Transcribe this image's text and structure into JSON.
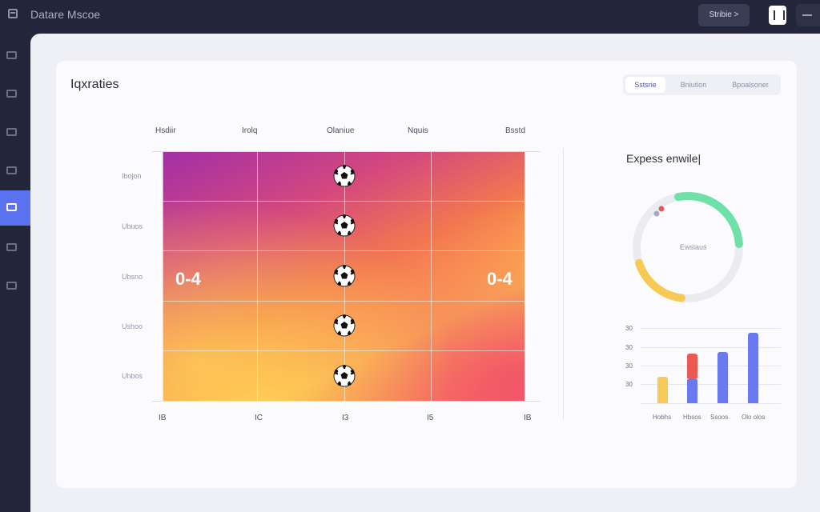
{
  "app": {
    "title": "Datare Mscoe",
    "top_button_label": "Stribie >",
    "icons": [
      "app-icon",
      "copy-icon",
      "minus-icon"
    ]
  },
  "sidebar": {
    "items": [
      {
        "name": "sidebar-item-1",
        "icon": "grid-icon",
        "active": false
      },
      {
        "name": "sidebar-item-2",
        "icon": "document-icon",
        "active": false
      },
      {
        "name": "sidebar-item-3",
        "icon": "book-icon",
        "active": false
      },
      {
        "name": "sidebar-item-4",
        "icon": "window-icon",
        "active": false
      },
      {
        "name": "sidebar-item-5",
        "icon": "monitor-icon",
        "active": true
      },
      {
        "name": "sidebar-item-6",
        "icon": "layers-icon",
        "active": false
      },
      {
        "name": "sidebar-item-7",
        "icon": "columns-icon",
        "active": false
      }
    ],
    "accent": "#5a72f0"
  },
  "main": {
    "title": "Iqxraties",
    "tabs": [
      {
        "label": "Sstsrie",
        "active": true
      },
      {
        "label": "Bniution",
        "active": false
      },
      {
        "label": "Bpoalsoner",
        "active": false
      }
    ]
  },
  "heatmap": {
    "column_headers": [
      "Hsdiir",
      "Irolq",
      "Olaniue",
      "Nquis",
      "Bsstd"
    ],
    "row_labels": [
      "Ibojon",
      "Ubuos",
      "Ubsno",
      "Ushoo",
      "Uhbos"
    ],
    "bottom_ticks": [
      "IB",
      "IC",
      "I3",
      "I5",
      "IB"
    ],
    "scores": [
      "0-4",
      "0-4"
    ],
    "ball_icon": "soccer-ball-icon",
    "ball_count": 5
  },
  "side": {
    "title": "Expess enwile|",
    "donut_label": "Ewslaus",
    "donut_segments": [
      {
        "color": "#6fe0a8",
        "fraction": 0.27
      },
      {
        "color": "#f7ca55",
        "fraction": 0.18
      },
      {
        "color": "#ebecf2",
        "fraction": 0.55
      }
    ],
    "dot_colors": [
      "#e05a5a",
      "#a7abba"
    ]
  },
  "chart_data": {
    "type": "bar",
    "categories": [
      "Hobhs",
      "Hbsos",
      "Ssoos",
      "Olo olos"
    ],
    "y_tick_labels": [
      "30",
      "30",
      "30",
      "30"
    ],
    "series": [
      {
        "name": "",
        "values": [
          30,
          14,
          58,
          80
        ],
        "color": "#f7ca55"
      },
      {
        "name": "",
        "values": [
          0,
          14,
          0,
          0
        ],
        "color": "#6a79f0"
      },
      {
        "name": "",
        "values": [
          0,
          28,
          0,
          0
        ],
        "color": "#eb5a52"
      }
    ],
    "bar_colors": [
      "#f7ca55",
      "#6a79f0",
      "#6a79f0",
      "#6a79f0"
    ],
    "ylim": [
      0,
      85
    ]
  }
}
